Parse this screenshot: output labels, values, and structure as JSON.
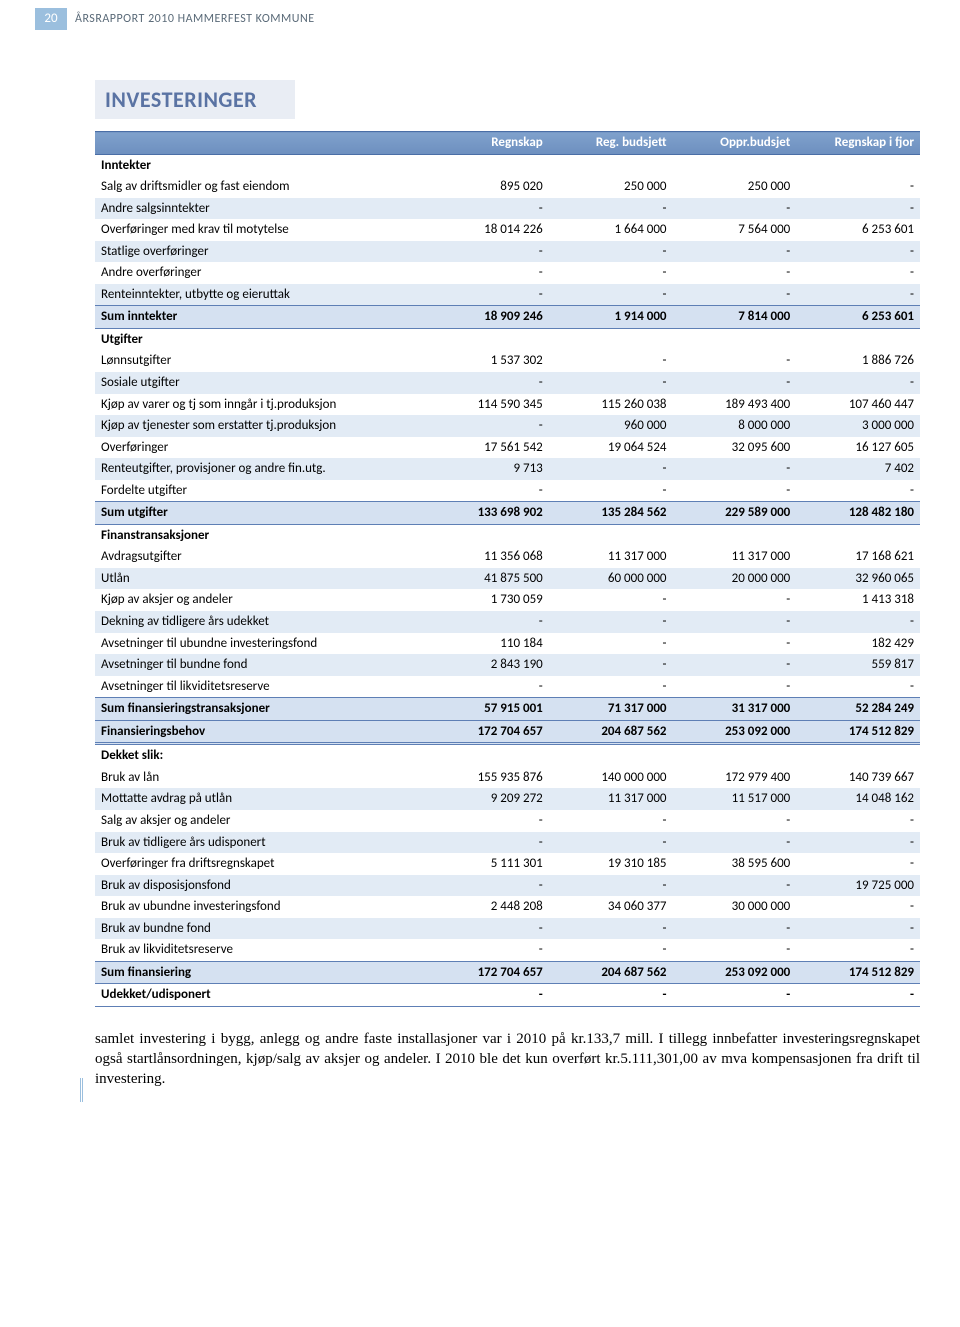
{
  "page": {
    "number": "20",
    "running_head": "ÅRSRAPPORT 2010 HAMMERFEST KOMMUNE",
    "section_title": "INVESTERINGER"
  },
  "table": {
    "headers": [
      "",
      "Regnskap",
      "Reg. budsjett",
      "Oppr.budsjet",
      "Regnskap i fjor"
    ],
    "groups": [
      {
        "label": "Inntekter",
        "rows": [
          {
            "l": "Salg av driftsmidler og fast eiendom",
            "v": [
              "895 020",
              "250 000",
              "250 000",
              "-"
            ]
          },
          {
            "l": "Andre salgsinntekter",
            "v": [
              "-",
              "-",
              "-",
              "-"
            ],
            "shade": true
          },
          {
            "l": "Overføringer med krav til motytelse",
            "v": [
              "18 014 226",
              "1 664 000",
              "7 564 000",
              "6 253 601"
            ]
          },
          {
            "l": "Statlige overføringer",
            "v": [
              "-",
              "-",
              "-",
              "-"
            ],
            "shade": true
          },
          {
            "l": "Andre overføringer",
            "v": [
              "-",
              "-",
              "-",
              "-"
            ]
          },
          {
            "l": "Renteinntekter, utbytte og eieruttak",
            "v": [
              "-",
              "-",
              "-",
              "-"
            ],
            "shade": true
          }
        ],
        "sum": {
          "l": "Sum inntekter",
          "v": [
            "18 909 246",
            "1 914 000",
            "7 814 000",
            "6 253 601"
          ]
        }
      },
      {
        "label": "Utgifter",
        "rows": [
          {
            "l": "Lønnsutgifter",
            "v": [
              "1 537 302",
              "-",
              "-",
              "1 886 726"
            ]
          },
          {
            "l": "Sosiale utgifter",
            "v": [
              "-",
              "-",
              "-",
              "-"
            ],
            "shade": true
          },
          {
            "l": "Kjøp av varer og tj som inngår i tj.produksjon",
            "v": [
              "114 590 345",
              "115 260 038",
              "189 493 400",
              "107 460 447"
            ]
          },
          {
            "l": "Kjøp av tjenester som erstatter tj.produksjon",
            "v": [
              "-",
              "960 000",
              "8 000 000",
              "3 000 000"
            ],
            "shade": true
          },
          {
            "l": "Overføringer",
            "v": [
              "17 561 542",
              "19 064 524",
              "32 095 600",
              "16 127 605"
            ]
          },
          {
            "l": "Renteutgifter, provisjoner og andre fin.utg.",
            "v": [
              "9 713",
              "-",
              "-",
              "7 402"
            ],
            "shade": true
          },
          {
            "l": "Fordelte utgifter",
            "v": [
              "-",
              "-",
              "-",
              "-"
            ]
          }
        ],
        "sum": {
          "l": "Sum utgifter",
          "v": [
            "133 698 902",
            "135 284 562",
            "229 589 000",
            "128 482 180"
          ]
        }
      },
      {
        "label": "Finanstransaksjoner",
        "rows": [
          {
            "l": "Avdragsutgifter",
            "v": [
              "11 356 068",
              "11 317 000",
              "11 317 000",
              "17 168 621"
            ]
          },
          {
            "l": "Utlån",
            "v": [
              "41 875 500",
              "60 000 000",
              "20 000 000",
              "32 960 065"
            ],
            "shade": true
          },
          {
            "l": "Kjøp av aksjer og andeler",
            "v": [
              "1 730 059",
              "-",
              "-",
              "1 413 318"
            ]
          },
          {
            "l": "Dekning av tidligere års udekket",
            "v": [
              "-",
              "-",
              "-",
              "-"
            ],
            "shade": true
          },
          {
            "l": "Avsetninger til ubundne investeringsfond",
            "v": [
              "110 184",
              "-",
              "-",
              "182 429"
            ]
          },
          {
            "l": "Avsetninger til bundne fond",
            "v": [
              "2 843 190",
              "-",
              "-",
              "559 817"
            ],
            "shade": true
          },
          {
            "l": "Avsetninger til likviditetsreserve",
            "v": [
              "-",
              "-",
              "-",
              "-"
            ]
          }
        ],
        "sum": {
          "l": "Sum finansieringstransaksjoner",
          "v": [
            "57 915 001",
            "71 317 000",
            "31 317 000",
            "52 284 249"
          ]
        },
        "extra_sum": {
          "l": "Finansieringsbehov",
          "v": [
            "172 704 657",
            "204 687 562",
            "253 092 000",
            "174 512 829"
          ],
          "doublebottom": true
        }
      },
      {
        "label": "Dekket slik:",
        "rows": [
          {
            "l": "Bruk av lån",
            "v": [
              "155 935 876",
              "140 000 000",
              "172 979 400",
              "140 739 667"
            ]
          },
          {
            "l": "Mottatte avdrag på utlån",
            "v": [
              "9 209 272",
              "11 317 000",
              "11 517 000",
              "14 048 162"
            ],
            "shade": true
          },
          {
            "l": "Salg av aksjer og andeler",
            "v": [
              "-",
              "-",
              "-",
              "-"
            ]
          },
          {
            "l": "Bruk av tidligere års udisponert",
            "v": [
              "-",
              "-",
              "-",
              "-"
            ],
            "shade": true
          },
          {
            "l": "Overføringer fra driftsregnskapet",
            "v": [
              "5 111 301",
              "19 310 185",
              "38 595 600",
              "-"
            ]
          },
          {
            "l": "Bruk av disposisjonsfond",
            "v": [
              "-",
              "-",
              "-",
              "19 725 000"
            ],
            "shade": true
          },
          {
            "l": "Bruk av ubundne investeringsfond",
            "v": [
              "2 448 208",
              "34 060 377",
              "30 000 000",
              "-"
            ]
          },
          {
            "l": "Bruk av bundne fond",
            "v": [
              "-",
              "-",
              "-",
              "-"
            ],
            "shade": true
          },
          {
            "l": "Bruk av likviditetsreserve",
            "v": [
              "-",
              "-",
              "-",
              "-"
            ]
          }
        ],
        "sum": {
          "l": "Sum finansiering",
          "v": [
            "172 704 657",
            "204 687 562",
            "253 092 000",
            "174 512 829"
          ]
        },
        "last": {
          "l": "Udekket/udisponert",
          "v": [
            "-",
            "-",
            "-",
            "-"
          ]
        }
      }
    ]
  },
  "bodytext": "samlet investering i bygg, anlegg og andre faste installasjoner var i 2010 på kr.133,7 mill. I tillegg innbefatter investeringsregnskapet også startlånsordningen, kjøp/salg av aksjer og andeler. I 2010 ble det kun overført kr.5.111,301,00 av mva kompensasjonen fra drift til investering."
}
